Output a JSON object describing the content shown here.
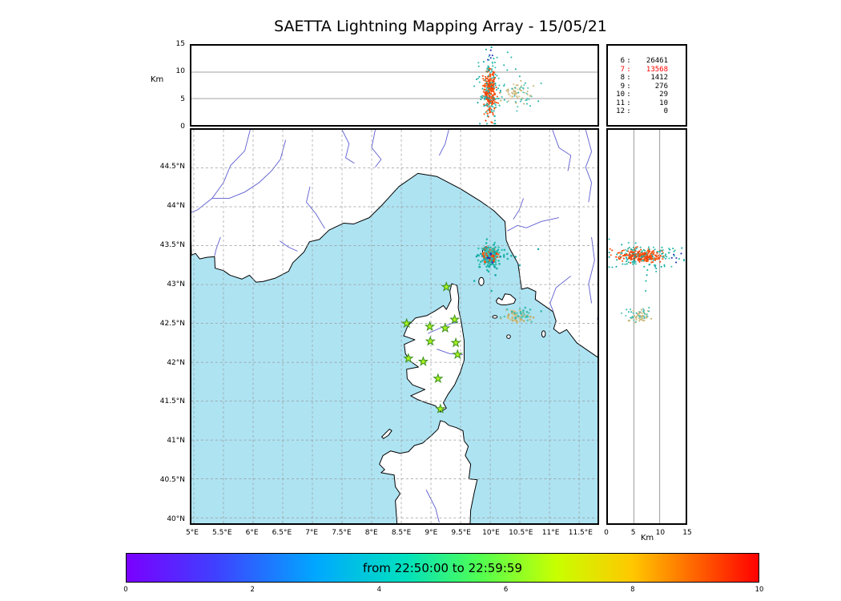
{
  "title": "SAETTA Lightning Mapping Array - 15/05/21",
  "colors": {
    "sea": "#aee3f2",
    "land": "#ffffff",
    "coast": "#000000",
    "river": "#5b5bd0",
    "grid": "#999999",
    "lake": "#00008b",
    "star_fill": "#aaf21e",
    "star_edge": "#3a8f1e",
    "highlight": "#ff0000",
    "panel_grid": "#808080"
  },
  "top_panel": {
    "ylabel": "Km",
    "ylim": [
      0,
      15
    ],
    "yticks": [
      {
        "v": 15,
        "label": "15"
      },
      {
        "v": 10,
        "label": "10"
      },
      {
        "v": 5,
        "label": "5"
      },
      {
        "v": 0,
        "label": "0"
      }
    ],
    "gridlines": [
      5,
      10
    ]
  },
  "right_panel": {
    "xlabel": "Km",
    "xlim": [
      0,
      15
    ],
    "xticks": [
      {
        "v": 0,
        "label": "0"
      },
      {
        "v": 5,
        "label": "5"
      },
      {
        "v": 10,
        "label": "10"
      },
      {
        "v": 15,
        "label": "15"
      }
    ],
    "gridlines": [
      5,
      10
    ]
  },
  "map": {
    "lon_range": [
      4.96,
      11.81
    ],
    "lat_range": [
      39.93,
      44.99
    ],
    "lat_ticks": [
      {
        "v": 44.5,
        "label": "44.5°N"
      },
      {
        "v": 44,
        "label": "44°N"
      },
      {
        "v": 43.5,
        "label": "43.5°N"
      },
      {
        "v": 43,
        "label": "43°N"
      },
      {
        "v": 42.5,
        "label": "42.5°N"
      },
      {
        "v": 42,
        "label": "42°N"
      },
      {
        "v": 41.5,
        "label": "41.5°N"
      },
      {
        "v": 41,
        "label": "41°N"
      },
      {
        "v": 40.5,
        "label": "40.5°N"
      },
      {
        "v": 40,
        "label": "40°N"
      }
    ],
    "lon_ticks": [
      {
        "v": 5,
        "label": "5°E"
      },
      {
        "v": 5.5,
        "label": "5.5°E"
      },
      {
        "v": 6,
        "label": "6°E"
      },
      {
        "v": 6.5,
        "label": "6.5°E"
      },
      {
        "v": 7,
        "label": "7°E"
      },
      {
        "v": 7.5,
        "label": "7.5°E"
      },
      {
        "v": 8,
        "label": "8°E"
      },
      {
        "v": 8.5,
        "label": "8.5°E"
      },
      {
        "v": 9,
        "label": "9°E"
      },
      {
        "v": 9.5,
        "label": "9.5°E"
      },
      {
        "v": 10,
        "label": "10°E"
      },
      {
        "v": 10.5,
        "label": "10.5°E"
      },
      {
        "v": 11,
        "label": "11°E"
      },
      {
        "v": 11.5,
        "label": "11.5°E"
      }
    ]
  },
  "colorbar": {
    "label": "from 22:50:00 to 22:59:59",
    "ticks": [
      "0",
      "2",
      "4",
      "6",
      "8",
      "10"
    ],
    "gradient": [
      "#7a00ff 0%",
      "#4040ff 14%",
      "#00a8ff 30%",
      "#00e0c0 44%",
      "#52ff50 56%",
      "#c8ff00 68%",
      "#ffc800 80%",
      "#ff6400 90%",
      "#ff0000 100%"
    ]
  },
  "chart_data": {
    "type": "scatter",
    "title": "SAETTA Lightning Mapping Array - 15/05/21",
    "date": "15/05/21",
    "time_window": {
      "from": "22:50:00",
      "to": "22:59:59"
    },
    "panels": [
      {
        "id": "altitude-vs-longitude",
        "ylabel": "Km",
        "ylim": [
          0,
          15
        ],
        "grid": [
          5,
          10
        ]
      },
      {
        "id": "map",
        "xlim_lon": [
          4.96,
          11.81
        ],
        "ylim_lat": [
          39.93,
          44.99
        ],
        "grid_step_deg": 0.5
      },
      {
        "id": "altitude-vs-latitude",
        "xlabel": "Km",
        "xlim": [
          0,
          15
        ],
        "grid": [
          5,
          10
        ]
      }
    ],
    "colorbar_ticks": [
      0,
      2,
      4,
      6,
      8,
      10
    ],
    "source_counts": [
      {
        "label": "6",
        "value": "26461",
        "highlight": false
      },
      {
        "label": "7",
        "value": "13568",
        "highlight": true
      },
      {
        "label": "8",
        "value": "1412",
        "highlight": false
      },
      {
        "label": "9",
        "value": "276",
        "highlight": false
      },
      {
        "label": "10",
        "value": "29",
        "highlight": false
      },
      {
        "label": "11",
        "value": "10",
        "highlight": false
      },
      {
        "label": "12",
        "value": "0",
        "highlight": false
      }
    ],
    "clusters": [
      {
        "name": "main-storm-core",
        "n": 270,
        "lon": 9.99,
        "lon_sd": 0.05,
        "lat": 43.37,
        "lat_sd": 0.04,
        "alt_km": 6.3,
        "alt_sd": 2.2,
        "colors": [
          "#f4500c",
          "#ef3b08",
          "#ff5f10"
        ]
      },
      {
        "name": "main-storm-halo",
        "n": 100,
        "lon": 9.99,
        "lon_sd": 0.1,
        "lat": 43.36,
        "lat_sd": 0.08,
        "alt_km": 7.0,
        "alt_sd": 3.3,
        "colors": [
          "#24b6a8",
          "#12a5a5",
          "#3cc4b4"
        ]
      },
      {
        "name": "main-storm-strays",
        "n": 16,
        "lon": 10.08,
        "lon_sd": 0.33,
        "lat": 43.3,
        "lat_sd": 0.18,
        "alt_km": 8.0,
        "alt_sd": 3.0,
        "colors": [
          "#20b2aa"
        ]
      },
      {
        "name": "main-storm-top",
        "n": 5,
        "lon": 9.98,
        "lon_sd": 0.04,
        "lat": 43.38,
        "lat_sd": 0.04,
        "alt_km": 13.0,
        "alt_sd": 0.8,
        "colors": [
          "#2233bb"
        ]
      },
      {
        "name": "south-cluster-tan",
        "n": 52,
        "lon": 10.46,
        "lon_sd": 0.1,
        "lat": 42.59,
        "lat_sd": 0.045,
        "alt_km": 6.2,
        "alt_sd": 0.9,
        "colors": [
          "#ccba7e",
          "#d8c48e",
          "#c0ae6c"
        ]
      },
      {
        "name": "south-cluster-teal",
        "n": 30,
        "lon": 10.52,
        "lon_sd": 0.13,
        "lat": 42.61,
        "lat_sd": 0.05,
        "alt_km": 6.0,
        "alt_sd": 1.2,
        "colors": [
          "#35b9ad",
          "#59c6bb"
        ]
      }
    ],
    "stations_lonlat": [
      [
        9.26,
        42.97
      ],
      [
        8.59,
        42.5
      ],
      [
        8.98,
        42.46
      ],
      [
        9.24,
        42.44
      ],
      [
        9.4,
        42.55
      ],
      [
        8.99,
        42.27
      ],
      [
        9.42,
        42.25
      ],
      [
        8.62,
        42.05
      ],
      [
        8.87,
        42.01
      ],
      [
        9.45,
        42.1
      ],
      [
        9.12,
        41.79
      ],
      [
        9.16,
        41.4
      ]
    ]
  }
}
